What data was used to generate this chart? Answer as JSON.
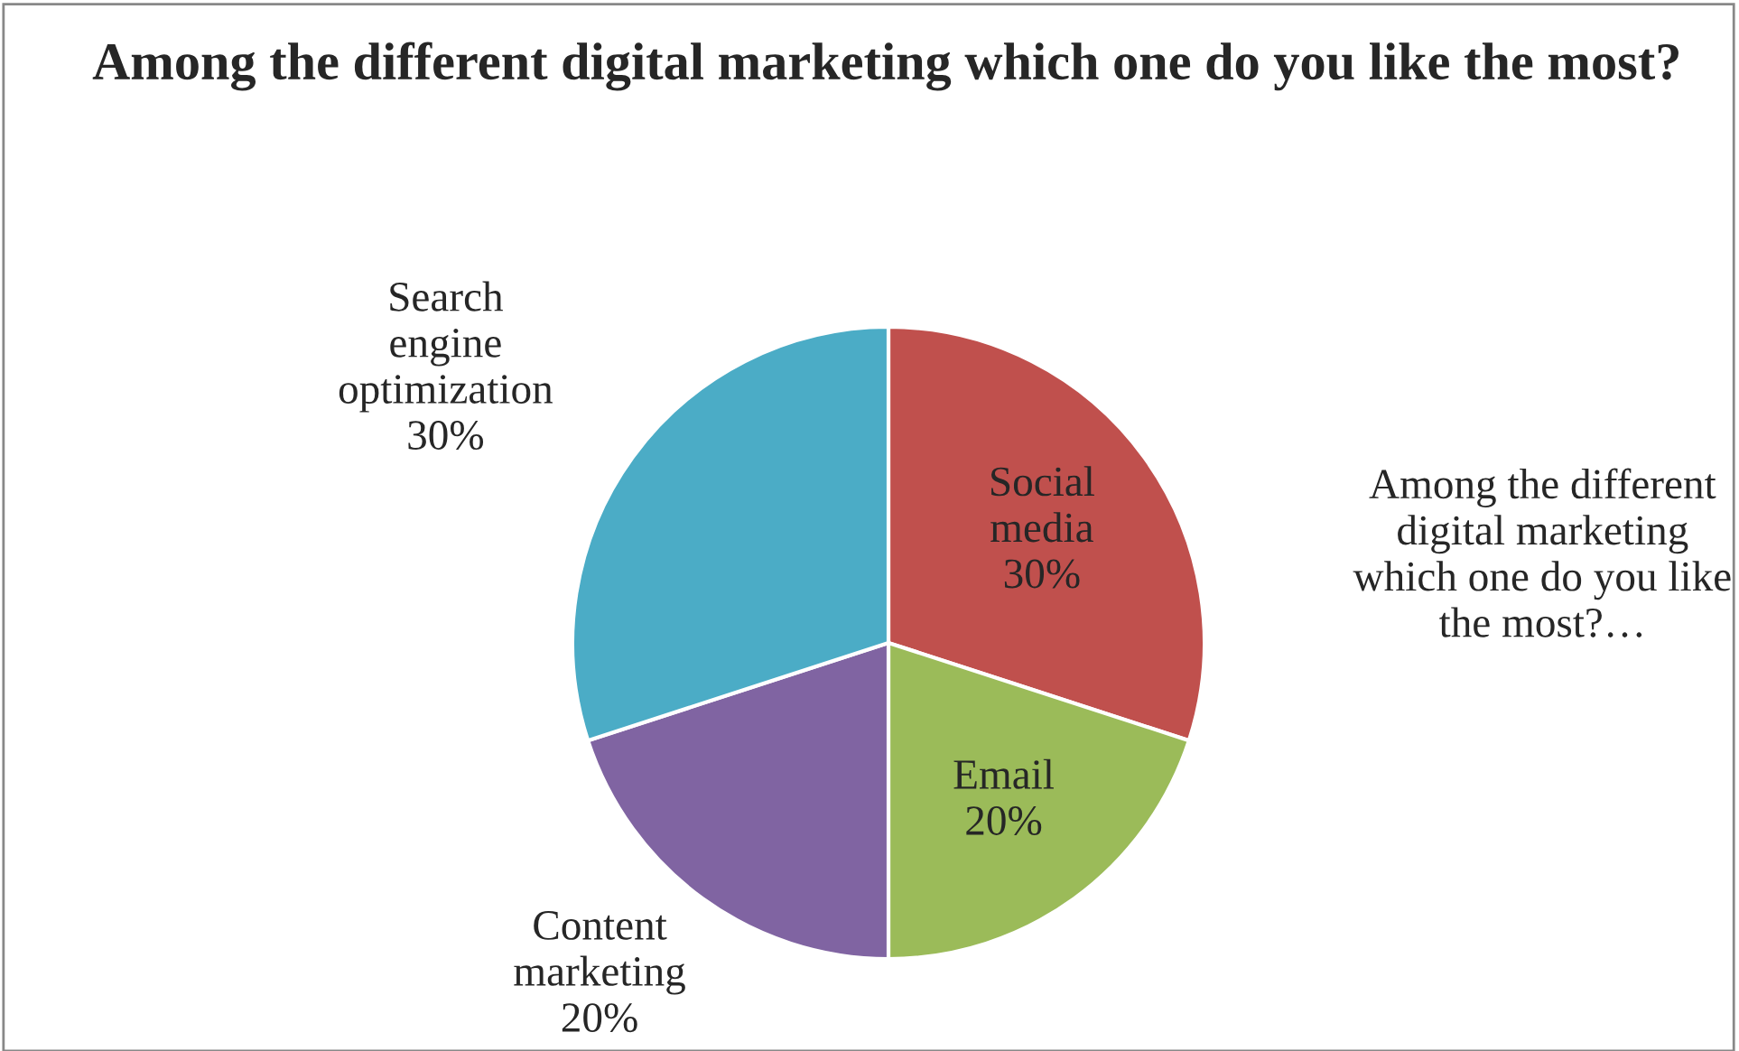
{
  "chart_data": {
    "type": "pie",
    "title": "Among the different digital marketing which one do you like the most?",
    "categories": [
      "Social media",
      "Email",
      "Content marketing",
      "Search engine optimization"
    ],
    "values": [
      30,
      20,
      20,
      30
    ],
    "colors": [
      "#c0504d",
      "#9bbb59",
      "#8064a2",
      "#4bacc6"
    ],
    "value_labels": [
      "30%",
      "20%",
      "20%",
      "30%"
    ],
    "annotations": [
      "Among the different digital marketing which one do you like the most?…"
    ]
  }
}
